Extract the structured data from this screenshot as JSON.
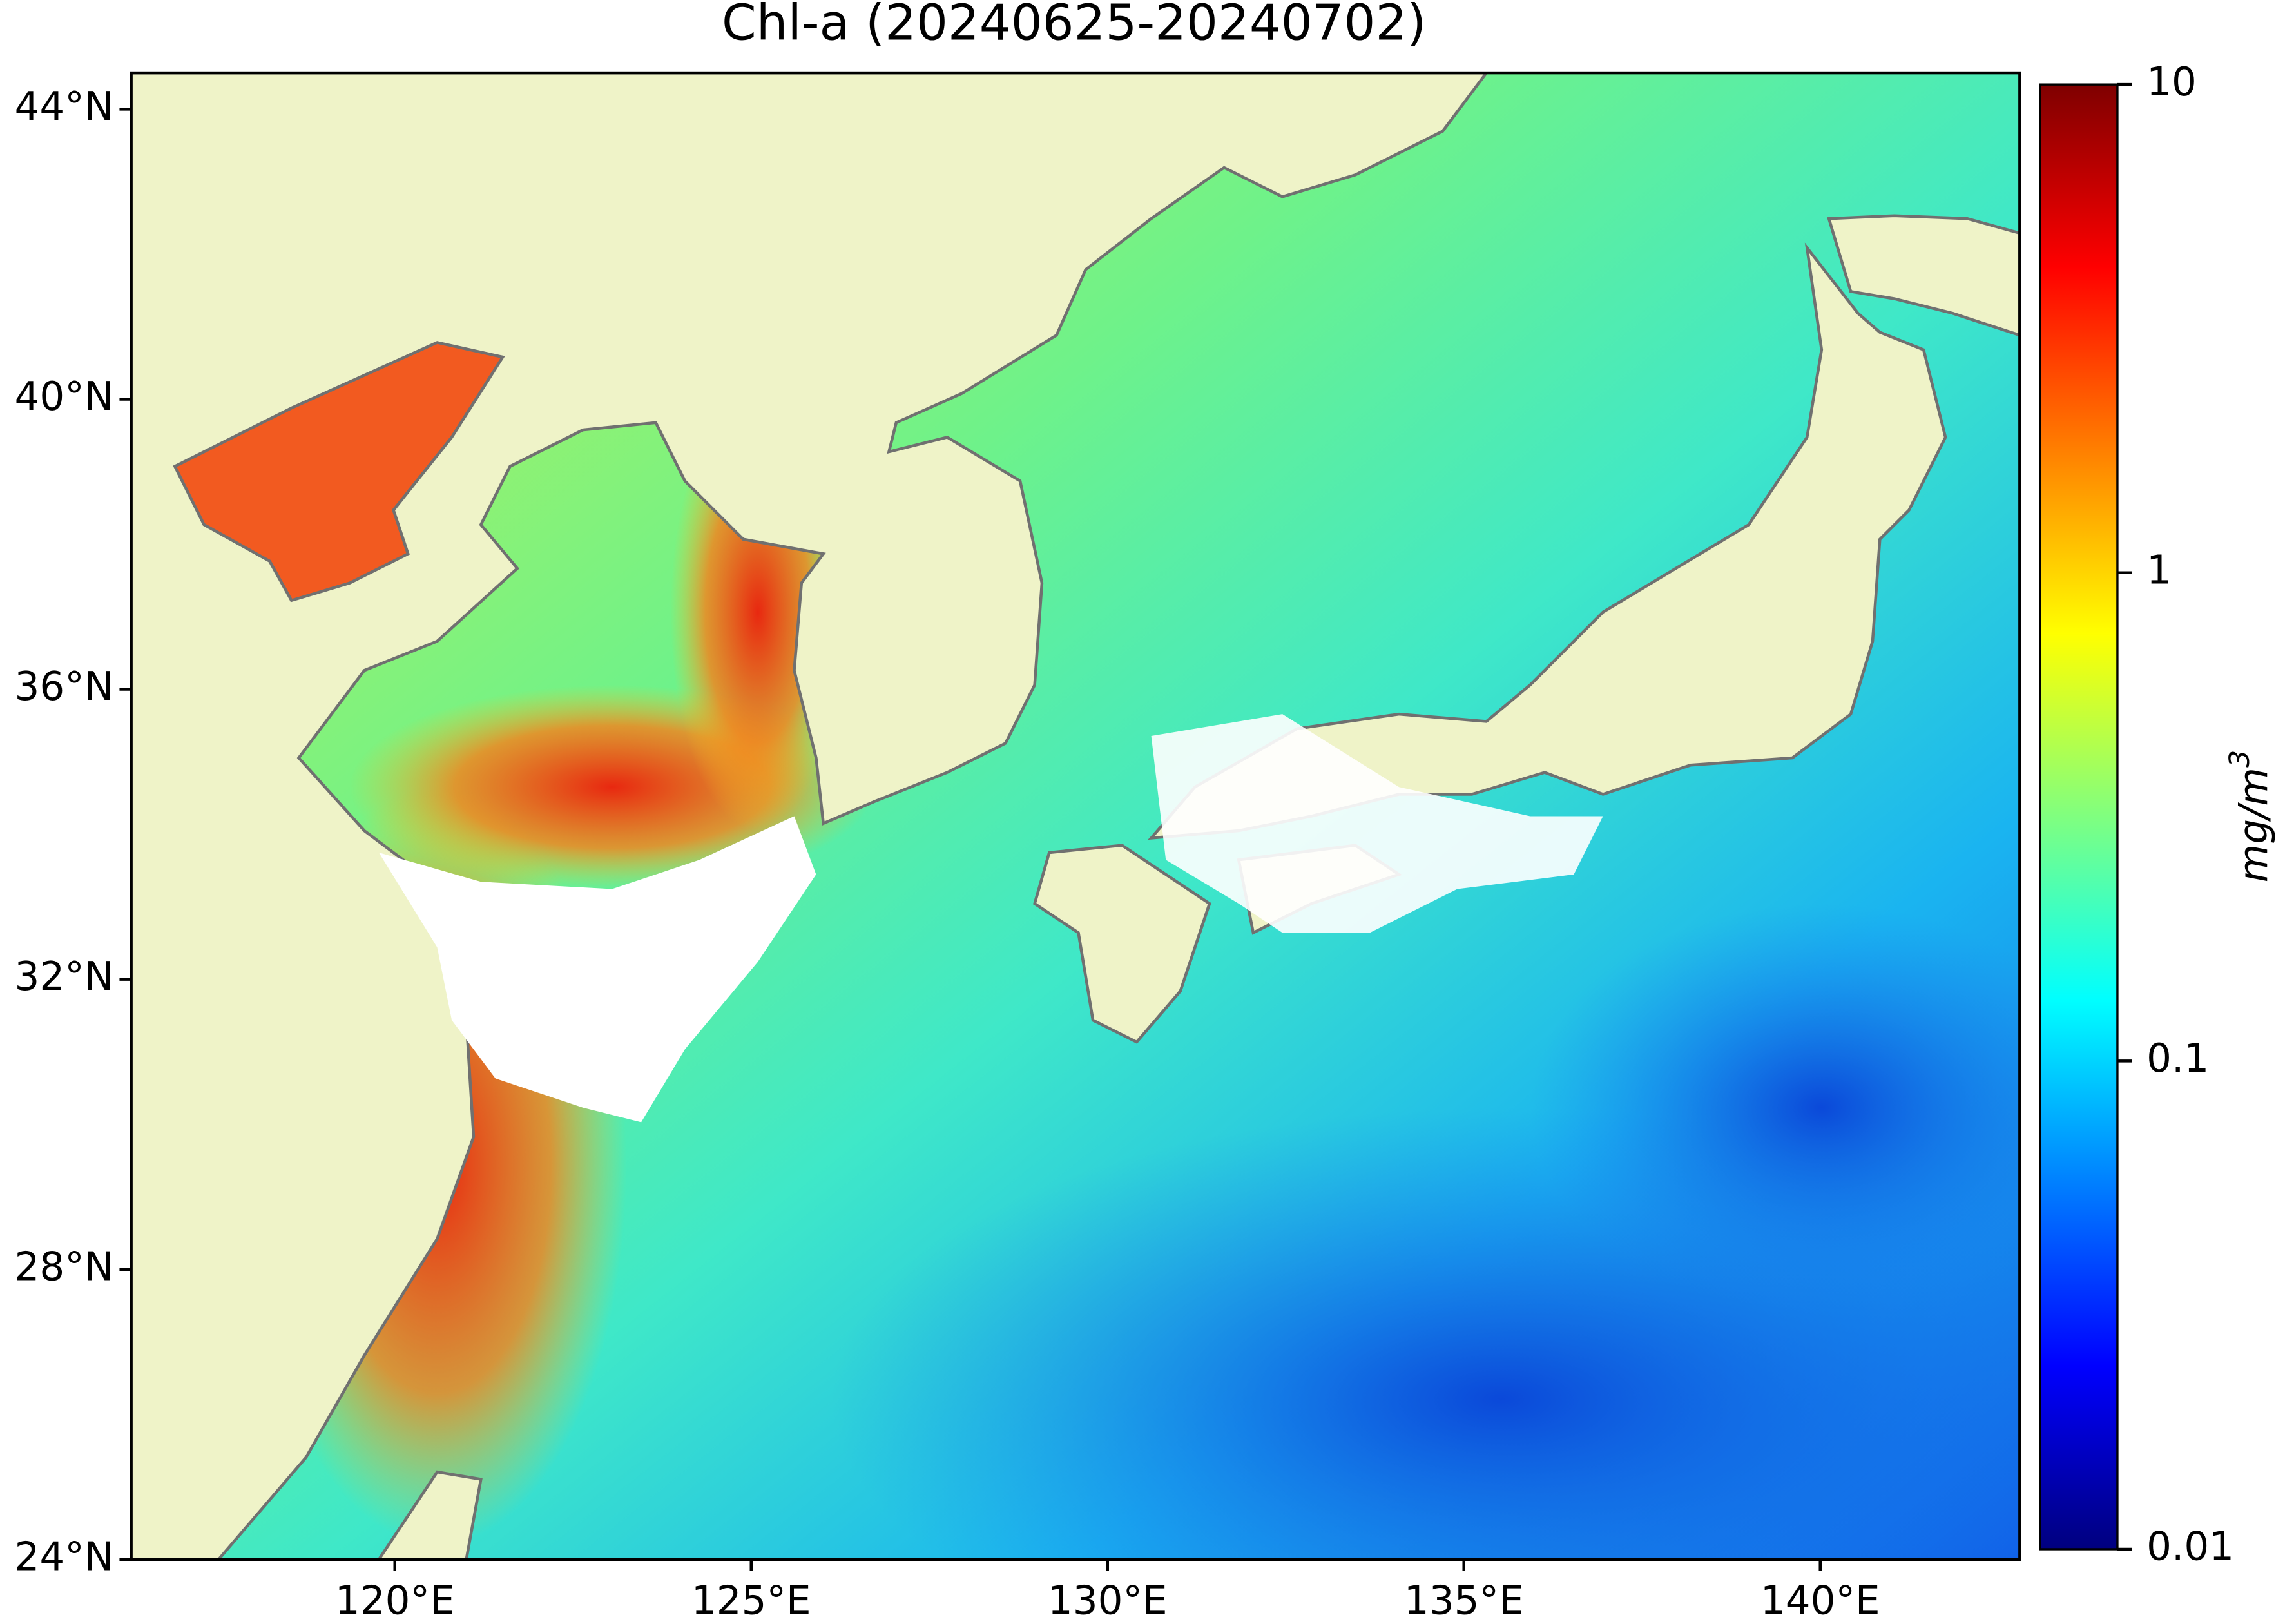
{
  "map": {
    "title": "Chl-a (20240625-20240702)",
    "xlim": [
      116.3,
      142.8
    ],
    "ylim": [
      24,
      44.5
    ],
    "xticks": [
      {
        "value": 120,
        "label": "120°E"
      },
      {
        "value": 125,
        "label": "125°E"
      },
      {
        "value": 130,
        "label": "130°E"
      },
      {
        "value": 135,
        "label": "135°E"
      },
      {
        "value": 140,
        "label": "140°E"
      }
    ],
    "yticks": [
      {
        "value": 24,
        "label": "24°N"
      },
      {
        "value": 28,
        "label": "28°N"
      },
      {
        "value": 32,
        "label": "32°N"
      },
      {
        "value": 36,
        "label": "36°N"
      },
      {
        "value": 40,
        "label": "40°N"
      },
      {
        "value": 44,
        "label": "44°N"
      }
    ],
    "colorbar": {
      "label": "mg/m",
      "label_sup": "3",
      "log": true,
      "lim": [
        0.01,
        10
      ],
      "ticks": [
        0.01,
        0.1,
        1,
        10
      ]
    }
  }
}
